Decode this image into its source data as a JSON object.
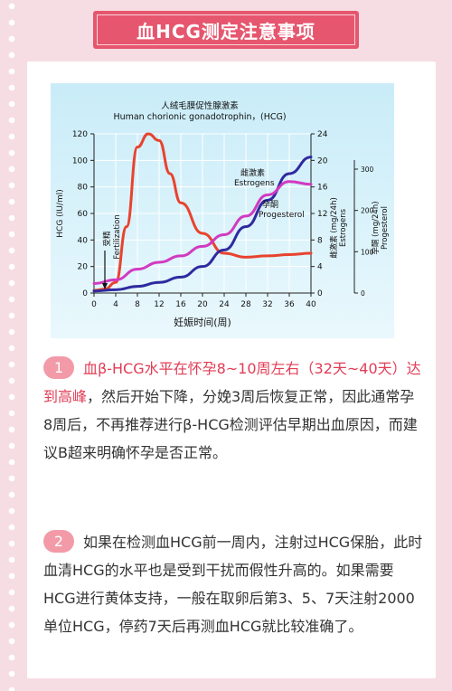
{
  "header": {
    "title": "血HCG测定注意事项"
  },
  "chart_data": {
    "type": "line",
    "title_cn": "人绒毛膜促性腺激素",
    "title_en": "Human chorionic gonadotrophin，(HCG)",
    "xlabel": "妊娠时间(周)",
    "x_ticks": [
      0,
      4,
      8,
      12,
      16,
      20,
      24,
      28,
      32,
      36,
      40
    ],
    "xlim": [
      0,
      40
    ],
    "left_axis": {
      "label": "HCG (IU/ml)",
      "ticks": [
        0,
        20,
        40,
        60,
        80,
        100,
        120
      ],
      "ylim": [
        0,
        120
      ]
    },
    "right_axis_1": {
      "label_cn": "雌激素 (mg/24h)",
      "label_en": "Estrogens",
      "ticks": [
        0,
        4,
        8,
        12,
        16,
        20,
        24
      ],
      "ylim": [
        0,
        24
      ]
    },
    "right_axis_2": {
      "label_cn": "孕酮 (mg/24h)",
      "label_en": "Progesterol",
      "ticks": [
        0,
        100,
        200,
        300
      ],
      "ylim": [
        0,
        300
      ]
    },
    "annotation": {
      "cn": "受精",
      "en": "Fertilization",
      "x": 2
    },
    "series": [
      {
        "name": "人绒毛膜促性腺激素 Human chorionic gonadotrophin，(HCG)",
        "color": "#e8432f",
        "axis": "left",
        "x": [
          0,
          2,
          4,
          6,
          8,
          10,
          12,
          14,
          16,
          20,
          24,
          28,
          32,
          36,
          40
        ],
        "y": [
          2,
          3,
          8,
          50,
          110,
          120,
          115,
          90,
          68,
          45,
          30,
          27,
          28,
          29,
          30
        ]
      },
      {
        "name": "雌激素 Estrogens",
        "color": "#2f2a9f",
        "axis": "right_1",
        "x": [
          0,
          4,
          8,
          12,
          16,
          20,
          24,
          28,
          32,
          36,
          40
        ],
        "y": [
          0.3,
          0.5,
          1,
          1.6,
          2.4,
          4,
          6.5,
          10,
          14,
          18,
          20.5
        ]
      },
      {
        "name": "孕酮 Progesterol",
        "color": "#d13ac0",
        "axis": "right_2",
        "x": [
          0,
          4,
          8,
          12,
          16,
          20,
          24,
          28,
          32,
          36,
          40
        ],
        "y": [
          18,
          25,
          45,
          58,
          70,
          88,
          110,
          145,
          185,
          210,
          205
        ]
      }
    ]
  },
  "notes": [
    {
      "num": "1",
      "highlight": "血β-HCG水平在怀孕8~10周左右（32天~40天）达到高峰",
      "text": "，然后开始下降，分娩3周后恢复正常，因此通常孕8周后，不再推荐进行β-HCG检测评估早期出血原因，而建议B超来明确怀孕是否正常。"
    },
    {
      "num": "2",
      "highlight": "",
      "text": "如果在检测血HCG前一周内，注射过HCG保胎，此时血清HCG的水平也是受到干扰而假性升高的。如果需要HCG进行黄体支持，一般在取卵后第3、5、7天注射2000单位HCG，停药7天后再测血HCG就比较准确了。"
    }
  ]
}
